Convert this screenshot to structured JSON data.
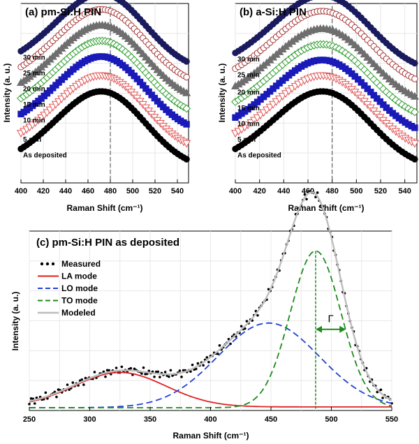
{
  "chart_data": [
    {
      "type": "scatter",
      "title": "(a) pm-Si:H PIN",
      "xlabel": "Raman Shift (cm⁻¹)",
      "ylabel": "Intensity (a. u.)",
      "xlim": [
        400,
        550
      ],
      "xticks": [
        400,
        420,
        440,
        460,
        480,
        500,
        520,
        540
      ],
      "reference_line_x": 480,
      "series": [
        {
          "name": "As deposited",
          "color": "#000000",
          "marker": "circle",
          "offset": 0.0,
          "fill": true
        },
        {
          "name": "5 min",
          "color": "#e05555",
          "marker": "triangle-down",
          "offset": 0.09,
          "fill": false
        },
        {
          "name": "10 min",
          "color": "#1a1ab8",
          "marker": "square",
          "offset": 0.2,
          "fill": true
        },
        {
          "name": "15 min",
          "color": "#2e9e2e",
          "marker": "diamond",
          "offset": 0.29,
          "fill": false
        },
        {
          "name": "20 min",
          "color": "#6e6e6e",
          "marker": "triangle-up",
          "offset": 0.38,
          "fill": true
        },
        {
          "name": "25 min",
          "color": "#a83232",
          "marker": "circle",
          "offset": 0.47,
          "fill": false
        },
        {
          "name": "30 min",
          "color": "#1a1a5e",
          "marker": "circle",
          "offset": 0.56,
          "fill": true
        }
      ]
    },
    {
      "type": "scatter",
      "title": "(b) a-Si:H PIN",
      "xlabel": "Raman Shift (cm⁻¹)",
      "ylabel": "Intensity (a. u.)",
      "xlim": [
        400,
        550
      ],
      "xticks": [
        400,
        420,
        440,
        460,
        480,
        500,
        520,
        540
      ],
      "reference_line_x": 480,
      "series": [
        {
          "name": "As deposited",
          "color": "#000000",
          "marker": "circle",
          "offset": 0.0,
          "fill": true
        },
        {
          "name": "5 min",
          "color": "#e05555",
          "marker": "triangle-down",
          "offset": 0.09,
          "fill": false
        },
        {
          "name": "10 min",
          "color": "#1a1ab8",
          "marker": "square",
          "offset": 0.18,
          "fill": true
        },
        {
          "name": "15 min",
          "color": "#2e9e2e",
          "marker": "diamond",
          "offset": 0.27,
          "fill": false
        },
        {
          "name": "20 min",
          "color": "#6e6e6e",
          "marker": "triangle-up",
          "offset": 0.36,
          "fill": true
        },
        {
          "name": "25 min",
          "color": "#a83232",
          "marker": "circle",
          "offset": 0.46,
          "fill": false
        },
        {
          "name": "30 min",
          "color": "#1a1a5e",
          "marker": "circle",
          "offset": 0.55,
          "fill": true
        }
      ]
    },
    {
      "type": "line",
      "title": "(c) pm-Si:H PIN as deposited",
      "xlabel": "Raman Shift (cm⁻¹)",
      "ylabel": "Intensity (a. u.)",
      "xlim": [
        250,
        550
      ],
      "ylim": [
        0,
        1.1
      ],
      "xticks": [
        250,
        300,
        350,
        400,
        450,
        500,
        550
      ],
      "components": [
        {
          "name": "LA mode",
          "center": 325,
          "width": 38,
          "amplitude": 0.22
        },
        {
          "name": "LO mode",
          "center": 448,
          "width": 42,
          "amplitude": 0.54
        },
        {
          "name": "TO mode",
          "center": 487,
          "width": 21,
          "amplitude": 1.0
        }
      ],
      "gamma_annotation": {
        "label": "Γ",
        "from": 487,
        "to": 512,
        "y": 0.5
      },
      "to_peak_marker_x": 487,
      "series": [
        {
          "name": "Measured",
          "color": "#000000",
          "style": "dots"
        },
        {
          "name": "LA mode",
          "color": "#e02020",
          "style": "solid"
        },
        {
          "name": "LO mode",
          "color": "#1f3fd6",
          "style": "dashed"
        },
        {
          "name": "TO mode",
          "color": "#1e8a1e",
          "style": "dashed"
        },
        {
          "name": "Modeled",
          "color": "#bdbdbd",
          "style": "solid"
        }
      ]
    }
  ]
}
